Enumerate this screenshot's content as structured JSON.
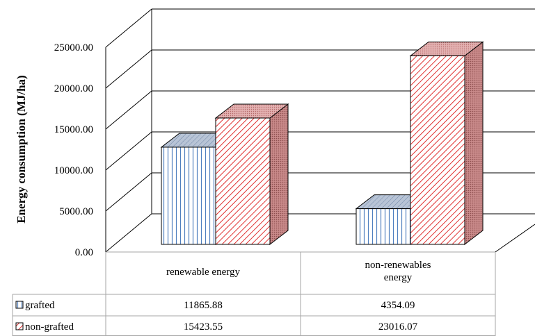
{
  "chart_data": {
    "type": "bar",
    "ylabel": "Energy consumption (MJ/ha)",
    "ylim": [
      0,
      25000
    ],
    "yticks": [
      "0.00",
      "5000.00",
      "10000.00",
      "15000.00",
      "20000.00",
      "25000.00"
    ],
    "ytick_values": [
      0,
      5000,
      10000,
      15000,
      20000,
      25000
    ],
    "grid": true,
    "categories": [
      [
        "renewable energy"
      ],
      [
        "non-renewables",
        "energy"
      ]
    ],
    "series": [
      {
        "name": "grafted",
        "values": [
          11865.88,
          4354.09
        ],
        "value_labels": [
          "11865.88",
          "4354.09"
        ]
      },
      {
        "name": "non-grafted",
        "values": [
          15423.55,
          23016.07
        ],
        "value_labels": [
          "15423.55",
          "23016.07"
        ]
      }
    ],
    "data_table": true,
    "colors": {
      "grafted_front": "#ffffff",
      "grafted_stripe": "#4f7fbf",
      "grafted_top": "#b8c4d6",
      "grafted_side": "#9fb0c9",
      "nongrafted_front": "#ffffff",
      "nongrafted_hatch": "#e03030",
      "nongrafted_top": "#d99a9a",
      "nongrafted_side": "#c98a8a",
      "grid": "#000000",
      "table_border": "#a6a6a6"
    }
  }
}
